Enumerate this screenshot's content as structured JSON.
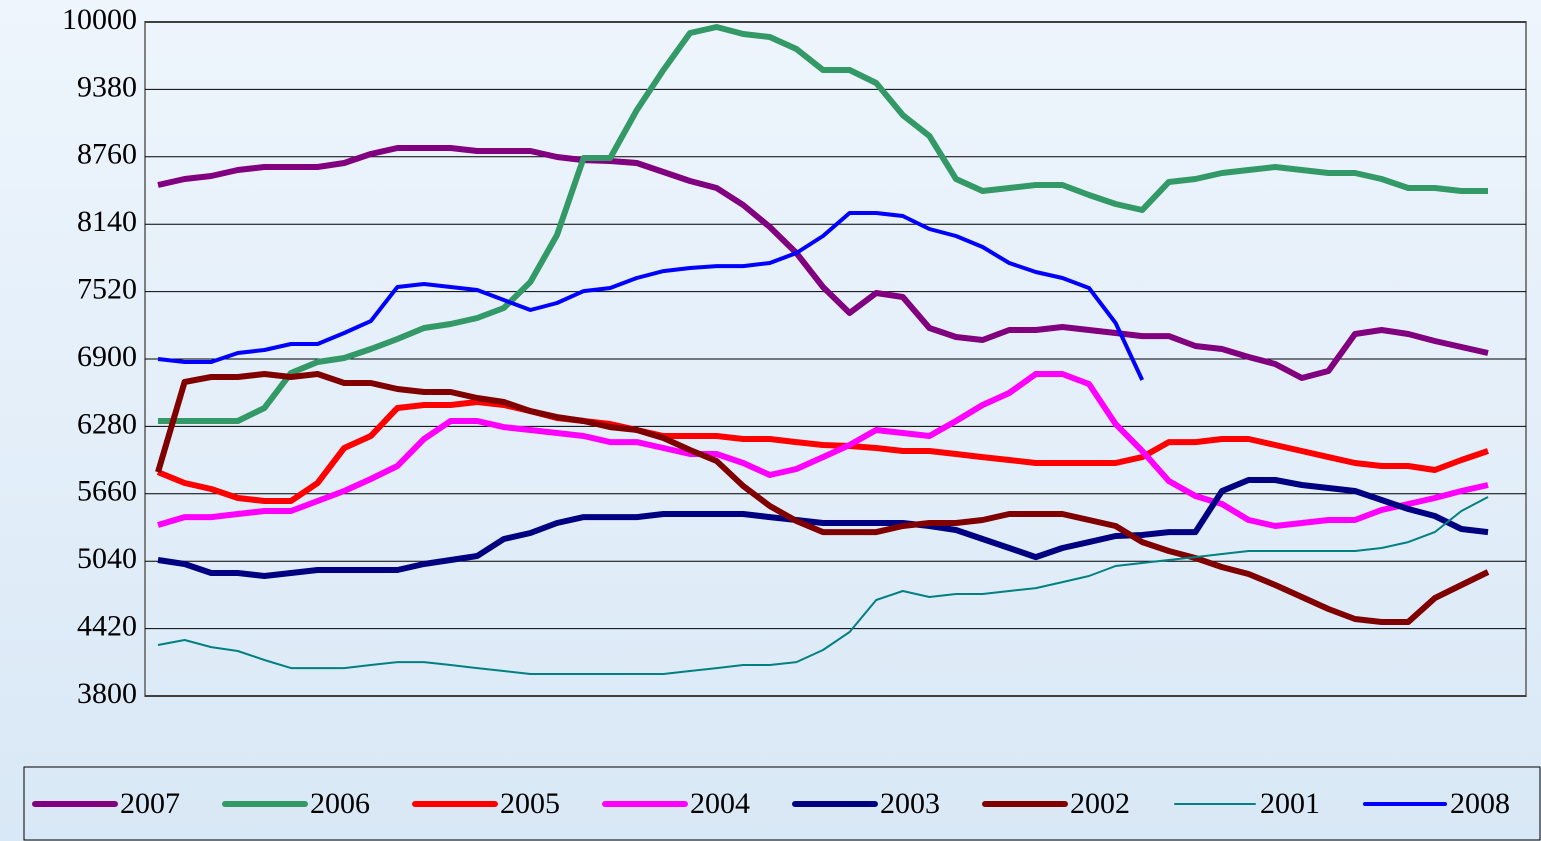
{
  "chart_data": {
    "type": "line",
    "categories": [
      null,
      null,
      null,
      null,
      null,
      null,
      null,
      null,
      null,
      null,
      null,
      null,
      null,
      null,
      null,
      null,
      null,
      null,
      null,
      null,
      null,
      null,
      null,
      null,
      null,
      null,
      null,
      null,
      null,
      null,
      null,
      null,
      null,
      null,
      null,
      null,
      null,
      null,
      null,
      null,
      null,
      null,
      null,
      null,
      null,
      null,
      null,
      null,
      null,
      null,
      null
    ],
    "ylim": [
      3800,
      10000
    ],
    "yticks": [
      3800,
      4420,
      5040,
      5660,
      6280,
      6900,
      7520,
      8140,
      8760,
      9380,
      10000
    ],
    "grid": true,
    "legend": "bottom",
    "series": [
      {
        "name": "2007",
        "color": "#800080",
        "width": 6,
        "values": [
          8501,
          8556,
          8583,
          8639,
          8666,
          8666,
          8666,
          8703,
          8786,
          8841,
          8841,
          8841,
          8813,
          8813,
          8813,
          8758,
          8730,
          8721,
          8703,
          8620,
          8537,
          8473,
          8317,
          8114,
          7875,
          7562,
          7323,
          7507,
          7470,
          7185,
          7102,
          7075,
          7167,
          7167,
          7194,
          7167,
          7139,
          7111,
          7111,
          7020,
          6992,
          6918,
          6854,
          6725,
          6790,
          7130,
          7167,
          7130,
          7066,
          7010,
          6955
        ]
      },
      {
        "name": "2006",
        "color": "#339966",
        "width": 6,
        "values": [
          6330,
          6330,
          6330,
          6330,
          6449,
          6771,
          6872,
          6909,
          6992,
          7084,
          7185,
          7222,
          7277,
          7369,
          7608,
          8041,
          8749,
          8749,
          9190,
          9558,
          9899,
          9954,
          9890,
          9862,
          9752,
          9558,
          9558,
          9439,
          9144,
          8951,
          8556,
          8445,
          8473,
          8501,
          8501,
          8409,
          8326,
          8271,
          8528,
          8556,
          8611,
          8639,
          8666,
          8639,
          8611,
          8611,
          8556,
          8473,
          8473,
          8445,
          8445
        ]
      },
      {
        "name": "2005",
        "color": "#ff0000",
        "width": 6,
        "values": [
          5860,
          5759,
          5704,
          5621,
          5594,
          5594,
          5759,
          6081,
          6192,
          6449,
          6477,
          6477,
          6504,
          6477,
          6421,
          6357,
          6330,
          6302,
          6247,
          6192,
          6192,
          6192,
          6164,
          6164,
          6136,
          6109,
          6100,
          6081,
          6054,
          6054,
          6026,
          5998,
          5971,
          5943,
          5943,
          5943,
          5943,
          5998,
          6136,
          6136,
          6164,
          6164,
          6109,
          6054,
          5998,
          5943,
          5916,
          5916,
          5879,
          5971,
          6054
        ]
      },
      {
        "name": "2004",
        "color": "#ff00ff",
        "width": 6,
        "values": [
          5373,
          5446,
          5446,
          5474,
          5502,
          5502,
          5594,
          5686,
          5796,
          5916,
          6164,
          6330,
          6330,
          6274,
          6247,
          6219,
          6192,
          6136,
          6136,
          6081,
          6026,
          6026,
          5943,
          5833,
          5888,
          5998,
          6109,
          6247,
          6219,
          6192,
          6330,
          6477,
          6587,
          6762,
          6762,
          6670,
          6302,
          6054,
          5778,
          5640,
          5566,
          5419,
          5364,
          5391,
          5419,
          5419,
          5511,
          5566,
          5621,
          5686,
          5741
        ]
      },
      {
        "name": "2003",
        "color": "#000080",
        "width": 6,
        "values": [
          5051,
          5014,
          4931,
          4931,
          4904,
          4931,
          4959,
          4959,
          4959,
          4959,
          5014,
          5051,
          5088,
          5244,
          5299,
          5391,
          5446,
          5446,
          5446,
          5474,
          5474,
          5474,
          5474,
          5446,
          5419,
          5391,
          5391,
          5391,
          5391,
          5364,
          5327,
          5244,
          5161,
          5078,
          5161,
          5216,
          5272,
          5281,
          5308,
          5308,
          5686,
          5787,
          5787,
          5741,
          5713,
          5686,
          5603,
          5520,
          5456,
          5336,
          5308
        ]
      },
      {
        "name": "2002",
        "color": "#800000",
        "width": 6,
        "values": [
          5860,
          6688,
          6734,
          6734,
          6762,
          6734,
          6762,
          6679,
          6679,
          6624,
          6596,
          6596,
          6541,
          6504,
          6421,
          6366,
          6330,
          6274,
          6247,
          6173,
          6063,
          5962,
          5732,
          5548,
          5410,
          5308,
          5308,
          5308,
          5364,
          5391,
          5391,
          5419,
          5474,
          5474,
          5474,
          5419,
          5364,
          5216,
          5134,
          5069,
          4986,
          4922,
          4821,
          4711,
          4600,
          4508,
          4481,
          4481,
          4701,
          4821,
          4941
        ]
      },
      {
        "name": "2001",
        "color": "#008080",
        "width": 2,
        "values": [
          4269,
          4315,
          4250,
          4214,
          4131,
          4057,
          4057,
          4057,
          4085,
          4112,
          4112,
          4085,
          4057,
          4030,
          4002,
          4002,
          4002,
          4002,
          4002,
          4002,
          4030,
          4057,
          4085,
          4085,
          4112,
          4223,
          4389,
          4683,
          4766,
          4711,
          4738,
          4738,
          4766,
          4793,
          4848,
          4904,
          4996,
          5023,
          5051,
          5078,
          5106,
          5134,
          5134,
          5134,
          5134,
          5134,
          5161,
          5216,
          5308,
          5502,
          5631
        ]
      },
      {
        "name": "2008",
        "color": "#0000ff",
        "width": 4,
        "values": [
          6900,
          6872,
          6872,
          6955,
          6983,
          7038,
          7038,
          7139,
          7249,
          7562,
          7590,
          7562,
          7535,
          7443,
          7351,
          7415,
          7525,
          7553,
          7645,
          7709,
          7737,
          7755,
          7755,
          7783,
          7875,
          8031,
          8243,
          8243,
          8215,
          8096,
          8031,
          7930,
          7783,
          7700,
          7645,
          7553,
          7231,
          6707,
          null,
          null,
          null,
          null,
          null,
          null,
          null,
          null,
          null,
          null,
          null,
          null,
          null
        ]
      }
    ]
  }
}
